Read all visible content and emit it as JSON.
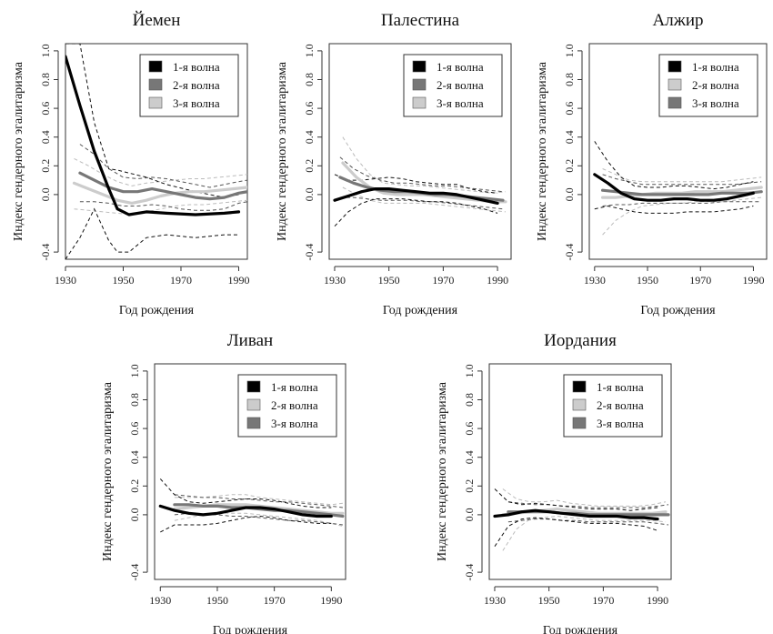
{
  "chart_data": [
    {
      "type": "line",
      "title": "Йемен",
      "xlabel": "Год рождения",
      "ylabel": "Индекс гендерного эгалитаризма",
      "xlim": [
        1930,
        1993
      ],
      "ylim": [
        -0.45,
        1.05
      ],
      "x_ticks": [
        "1930",
        "1950",
        "1970",
        "1990"
      ],
      "y_ticks": [
        "-0.4",
        "0.0",
        "0.2",
        "0.4",
        "0.6",
        "0.8",
        "1.0"
      ],
      "legend_position": "top-right",
      "series": [
        {
          "name": "1-я волна",
          "color": "#000000",
          "x": [
            1930,
            1935,
            1940,
            1945,
            1948,
            1952,
            1958,
            1965,
            1975,
            1985,
            1990
          ],
          "y": [
            0.96,
            0.62,
            0.3,
            0.04,
            -0.1,
            -0.14,
            -0.12,
            -0.13,
            -0.14,
            -0.13,
            -0.12
          ],
          "ci_lower": [
            -0.45,
            -0.3,
            -0.1,
            -0.32,
            -0.4,
            -0.4,
            -0.3,
            -0.28,
            -0.3,
            -0.28,
            -0.28
          ],
          "ci_upper": [
            1.05,
            1.05,
            0.5,
            0.18,
            0.17,
            0.15,
            0.12,
            0.07,
            0.02,
            -0.02,
            0.0
          ]
        },
        {
          "name": "2-я волна",
          "color": "#777777",
          "x": [
            1935,
            1940,
            1945,
            1950,
            1955,
            1960,
            1965,
            1970,
            1975,
            1980,
            1985,
            1990,
            1993
          ],
          "y": [
            0.15,
            0.1,
            0.05,
            0.02,
            0.02,
            0.04,
            0.02,
            0.0,
            -0.02,
            -0.03,
            -0.02,
            0.01,
            0.02
          ],
          "ci_lower": [
            -0.05,
            -0.05,
            -0.06,
            -0.08,
            -0.08,
            -0.07,
            -0.08,
            -0.1,
            -0.11,
            -0.11,
            -0.1,
            -0.06,
            -0.05
          ],
          "ci_upper": [
            0.35,
            0.28,
            0.18,
            0.12,
            0.11,
            0.12,
            0.11,
            0.09,
            0.07,
            0.05,
            0.07,
            0.09,
            0.1
          ]
        },
        {
          "name": "3-я волна",
          "color": "#cccccc",
          "x": [
            1933,
            1938,
            1943,
            1948,
            1953,
            1958,
            1963,
            1968,
            1973,
            1978,
            1983,
            1988,
            1993
          ],
          "y": [
            0.08,
            0.04,
            0.0,
            -0.04,
            -0.06,
            -0.04,
            -0.01,
            0.01,
            0.02,
            0.02,
            0.03,
            0.04,
            0.05
          ],
          "ci_lower": [
            -0.1,
            -0.11,
            -0.12,
            -0.13,
            -0.14,
            -0.12,
            -0.1,
            -0.08,
            -0.07,
            -0.07,
            -0.06,
            -0.05,
            -0.04
          ],
          "ci_upper": [
            0.25,
            0.2,
            0.14,
            0.09,
            0.06,
            0.08,
            0.09,
            0.1,
            0.11,
            0.11,
            0.12,
            0.13,
            0.14
          ]
        }
      ]
    },
    {
      "type": "line",
      "title": "Палестина",
      "xlabel": "Год рождения",
      "ylabel": "Индекс гендерного эгалитаризма",
      "xlim": [
        1928,
        1995
      ],
      "ylim": [
        -0.45,
        1.05
      ],
      "x_ticks": [
        "1930",
        "1950",
        "1970",
        "1990"
      ],
      "y_ticks": [
        "-0.4",
        "0.0",
        "0.2",
        "0.4",
        "0.6",
        "0.8",
        "1.0"
      ],
      "legend_position": "top-right",
      "series": [
        {
          "name": "1-я волна",
          "color": "#000000",
          "x": [
            1930,
            1935,
            1940,
            1945,
            1950,
            1955,
            1960,
            1965,
            1970,
            1975,
            1980,
            1985,
            1990
          ],
          "y": [
            -0.04,
            -0.01,
            0.02,
            0.04,
            0.04,
            0.03,
            0.02,
            0.01,
            0.01,
            0.0,
            -0.02,
            -0.04,
            -0.06
          ],
          "ci_lower": [
            -0.22,
            -0.12,
            -0.06,
            -0.03,
            -0.03,
            -0.03,
            -0.04,
            -0.05,
            -0.05,
            -0.06,
            -0.08,
            -0.1,
            -0.13
          ],
          "ci_upper": [
            0.14,
            0.1,
            0.1,
            0.11,
            0.12,
            0.11,
            0.09,
            0.08,
            0.07,
            0.07,
            0.04,
            0.02,
            0.01
          ]
        },
        {
          "name": "2-я волна",
          "color": "#777777",
          "x": [
            1932,
            1937,
            1942,
            1947,
            1952,
            1957,
            1962,
            1967,
            1972,
            1977,
            1982,
            1987,
            1992
          ],
          "y": [
            0.12,
            0.08,
            0.05,
            0.03,
            0.02,
            0.02,
            0.01,
            0.0,
            0.0,
            -0.01,
            -0.02,
            -0.03,
            -0.04
          ],
          "ci_lower": [
            -0.02,
            -0.02,
            -0.03,
            -0.04,
            -0.04,
            -0.04,
            -0.05,
            -0.05,
            -0.06,
            -0.07,
            -0.08,
            -0.09,
            -0.1
          ],
          "ci_upper": [
            0.26,
            0.18,
            0.13,
            0.1,
            0.08,
            0.08,
            0.07,
            0.06,
            0.06,
            0.05,
            0.04,
            0.03,
            0.02
          ]
        },
        {
          "name": "3-я волна",
          "color": "#cccccc",
          "x": [
            1933,
            1938,
            1943,
            1948,
            1953,
            1958,
            1963,
            1968,
            1973,
            1978,
            1983,
            1988,
            1993
          ],
          "y": [
            0.22,
            0.12,
            0.05,
            0.01,
            0.0,
            0.0,
            0.0,
            -0.01,
            -0.02,
            -0.03,
            -0.04,
            -0.05,
            -0.05
          ],
          "ci_lower": [
            0.05,
            0.0,
            -0.04,
            -0.06,
            -0.06,
            -0.06,
            -0.06,
            -0.07,
            -0.08,
            -0.09,
            -0.1,
            -0.11,
            -0.12
          ],
          "ci_upper": [
            0.4,
            0.25,
            0.14,
            0.08,
            0.07,
            0.06,
            0.06,
            0.05,
            0.04,
            0.03,
            0.02,
            0.01,
            0.02
          ]
        }
      ]
    },
    {
      "type": "line",
      "title": "Алжир",
      "xlabel": "Год рождения",
      "ylabel": "Индекс гендерного эгалитаризма",
      "xlim": [
        1928,
        1995
      ],
      "ylim": [
        -0.45,
        1.05
      ],
      "x_ticks": [
        "1930",
        "1950",
        "1970",
        "1990"
      ],
      "y_ticks": [
        "-0.4",
        "0.0",
        "0.2",
        "0.4",
        "0.6",
        "0.8",
        "1.0"
      ],
      "legend_position": "top-right",
      "series": [
        {
          "name": "1-я волна",
          "color": "#000000",
          "x": [
            1930,
            1935,
            1940,
            1945,
            1950,
            1955,
            1960,
            1965,
            1970,
            1975,
            1980,
            1985,
            1990
          ],
          "y": [
            0.14,
            0.08,
            0.01,
            -0.03,
            -0.04,
            -0.04,
            -0.03,
            -0.03,
            -0.04,
            -0.04,
            -0.03,
            -0.01,
            0.01
          ],
          "ci_lower": [
            -0.1,
            -0.08,
            -0.1,
            -0.12,
            -0.13,
            -0.13,
            -0.13,
            -0.12,
            -0.12,
            -0.12,
            -0.11,
            -0.1,
            -0.08
          ],
          "ci_upper": [
            0.37,
            0.23,
            0.12,
            0.06,
            0.05,
            0.05,
            0.06,
            0.06,
            0.05,
            0.04,
            0.05,
            0.07,
            0.09
          ]
        },
        {
          "name": "2-я волна",
          "color": "#cccccc",
          "x": [
            1933,
            1938,
            1943,
            1948,
            1953,
            1958,
            1963,
            1968,
            1973,
            1978,
            1983,
            1988,
            1993
          ],
          "y": [
            -0.02,
            -0.02,
            -0.01,
            0.0,
            0.01,
            0.01,
            0.01,
            0.02,
            0.02,
            0.02,
            0.03,
            0.04,
            0.05
          ],
          "ci_lower": [
            -0.28,
            -0.18,
            -0.12,
            -0.08,
            -0.07,
            -0.06,
            -0.06,
            -0.05,
            -0.05,
            -0.05,
            -0.04,
            -0.03,
            -0.02
          ],
          "ci_upper": [
            0.18,
            0.14,
            0.1,
            0.09,
            0.09,
            0.09,
            0.09,
            0.09,
            0.09,
            0.09,
            0.1,
            0.11,
            0.12
          ]
        },
        {
          "name": "3-я волна",
          "color": "#777777",
          "x": [
            1933,
            1938,
            1943,
            1948,
            1953,
            1958,
            1963,
            1968,
            1973,
            1978,
            1983,
            1988,
            1993
          ],
          "y": [
            0.03,
            0.02,
            0.01,
            0.0,
            0.0,
            0.0,
            0.0,
            0.0,
            0.0,
            0.01,
            0.01,
            0.01,
            0.02
          ],
          "ci_lower": [
            -0.08,
            -0.07,
            -0.07,
            -0.06,
            -0.06,
            -0.06,
            -0.06,
            -0.06,
            -0.06,
            -0.05,
            -0.05,
            -0.05,
            -0.05
          ],
          "ci_upper": [
            0.14,
            0.11,
            0.09,
            0.07,
            0.07,
            0.07,
            0.07,
            0.07,
            0.07,
            0.07,
            0.07,
            0.08,
            0.09
          ]
        }
      ]
    },
    {
      "type": "line",
      "title": "Ливан",
      "xlabel": "Год рождения",
      "ylabel": "Индекс гендерного эгалитаризма",
      "xlim": [
        1928,
        1995
      ],
      "ylim": [
        -0.45,
        1.05
      ],
      "x_ticks": [
        "1930",
        "1950",
        "1970",
        "1990"
      ],
      "y_ticks": [
        "-0.4",
        "0.0",
        "0.2",
        "0.4",
        "0.6",
        "0.8",
        "1.0"
      ],
      "legend_position": "top-right",
      "series": [
        {
          "name": "1-я волна",
          "color": "#000000",
          "x": [
            1930,
            1935,
            1940,
            1945,
            1950,
            1955,
            1960,
            1965,
            1970,
            1975,
            1980,
            1985,
            1990
          ],
          "y": [
            0.06,
            0.03,
            0.01,
            0.0,
            0.01,
            0.03,
            0.05,
            0.05,
            0.04,
            0.02,
            0.0,
            -0.01,
            -0.01
          ],
          "ci_lower": [
            -0.12,
            -0.07,
            -0.07,
            -0.07,
            -0.06,
            -0.04,
            -0.02,
            -0.01,
            -0.02,
            -0.04,
            -0.05,
            -0.06,
            -0.06
          ],
          "ci_upper": [
            0.25,
            0.14,
            0.09,
            0.08,
            0.09,
            0.1,
            0.11,
            0.11,
            0.1,
            0.08,
            0.06,
            0.05,
            0.05
          ]
        },
        {
          "name": "2-я волна",
          "color": "#cccccc",
          "x": [
            1935,
            1940,
            1945,
            1950,
            1955,
            1960,
            1965,
            1970,
            1975,
            1980,
            1985,
            1990,
            1994
          ],
          "y": [
            0.04,
            0.05,
            0.06,
            0.07,
            0.07,
            0.07,
            0.06,
            0.05,
            0.04,
            0.03,
            0.02,
            0.01,
            0.01
          ],
          "ci_lower": [
            -0.04,
            -0.02,
            0.0,
            0.01,
            0.01,
            0.01,
            0.0,
            -0.01,
            -0.02,
            -0.03,
            -0.04,
            -0.06,
            -0.08
          ],
          "ci_upper": [
            0.12,
            0.12,
            0.12,
            0.13,
            0.14,
            0.14,
            0.12,
            0.11,
            0.1,
            0.09,
            0.08,
            0.07,
            0.08
          ]
        },
        {
          "name": "3-я волна",
          "color": "#777777",
          "x": [
            1935,
            1940,
            1945,
            1950,
            1955,
            1960,
            1965,
            1970,
            1975,
            1980,
            1985,
            1990,
            1994
          ],
          "y": [
            0.07,
            0.07,
            0.06,
            0.06,
            0.05,
            0.05,
            0.04,
            0.03,
            0.03,
            0.02,
            0.01,
            0.0,
            -0.01
          ],
          "ci_lower": [
            0.0,
            0.01,
            0.0,
            0.0,
            -0.01,
            -0.01,
            -0.02,
            -0.03,
            -0.04,
            -0.04,
            -0.05,
            -0.06,
            -0.07
          ],
          "ci_upper": [
            0.14,
            0.13,
            0.12,
            0.12,
            0.11,
            0.11,
            0.1,
            0.09,
            0.09,
            0.08,
            0.07,
            0.06,
            0.05
          ]
        }
      ]
    },
    {
      "type": "line",
      "title": "Иордания",
      "xlabel": "Год рождения",
      "ylabel": "Индекс гендерного эгалитаризма",
      "xlim": [
        1928,
        1995
      ],
      "ylim": [
        -0.45,
        1.05
      ],
      "x_ticks": [
        "1930",
        "1950",
        "1970",
        "1990"
      ],
      "y_ticks": [
        "-0.4",
        "0.0",
        "0.2",
        "0.4",
        "0.6",
        "0.8",
        "1.0"
      ],
      "legend_position": "top-right",
      "series": [
        {
          "name": "1-я волна",
          "color": "#000000",
          "x": [
            1930,
            1935,
            1940,
            1945,
            1950,
            1955,
            1960,
            1965,
            1970,
            1975,
            1980,
            1985,
            1990
          ],
          "y": [
            -0.01,
            0.0,
            0.02,
            0.03,
            0.02,
            0.01,
            0.0,
            -0.01,
            -0.01,
            -0.01,
            -0.02,
            -0.02,
            -0.03
          ],
          "ci_lower": [
            -0.22,
            -0.08,
            -0.03,
            -0.02,
            -0.03,
            -0.04,
            -0.05,
            -0.06,
            -0.06,
            -0.06,
            -0.07,
            -0.08,
            -0.11
          ],
          "ci_upper": [
            0.18,
            0.09,
            0.07,
            0.08,
            0.07,
            0.06,
            0.05,
            0.04,
            0.04,
            0.04,
            0.03,
            0.04,
            0.05
          ]
        },
        {
          "name": "2-я волна",
          "color": "#cccccc",
          "x": [
            1933,
            1938,
            1943,
            1948,
            1953,
            1958,
            1963,
            1968,
            1973,
            1978,
            1983,
            1988,
            1993
          ],
          "y": [
            0.0,
            0.01,
            0.02,
            0.03,
            0.04,
            0.03,
            0.02,
            0.01,
            0.01,
            0.01,
            0.01,
            0.01,
            0.02
          ],
          "ci_lower": [
            -0.25,
            -0.1,
            -0.03,
            -0.02,
            -0.01,
            -0.02,
            -0.03,
            -0.04,
            -0.04,
            -0.04,
            -0.04,
            -0.04,
            -0.05
          ],
          "ci_upper": [
            0.18,
            0.11,
            0.09,
            0.09,
            0.1,
            0.08,
            0.07,
            0.06,
            0.06,
            0.06,
            0.06,
            0.07,
            0.09
          ]
        },
        {
          "name": "3-я волна",
          "color": "#777777",
          "x": [
            1935,
            1940,
            1945,
            1950,
            1955,
            1960,
            1965,
            1970,
            1975,
            1980,
            1985,
            1990,
            1994
          ],
          "y": [
            0.02,
            0.02,
            0.02,
            0.02,
            0.01,
            0.01,
            0.0,
            0.0,
            0.0,
            0.0,
            0.0,
            0.0,
            0.0
          ],
          "ci_lower": [
            -0.05,
            -0.04,
            -0.03,
            -0.03,
            -0.04,
            -0.04,
            -0.05,
            -0.05,
            -0.05,
            -0.05,
            -0.05,
            -0.06,
            -0.07
          ],
          "ci_upper": [
            0.09,
            0.08,
            0.07,
            0.07,
            0.06,
            0.06,
            0.05,
            0.05,
            0.05,
            0.05,
            0.05,
            0.06,
            0.07
          ]
        }
      ]
    }
  ]
}
